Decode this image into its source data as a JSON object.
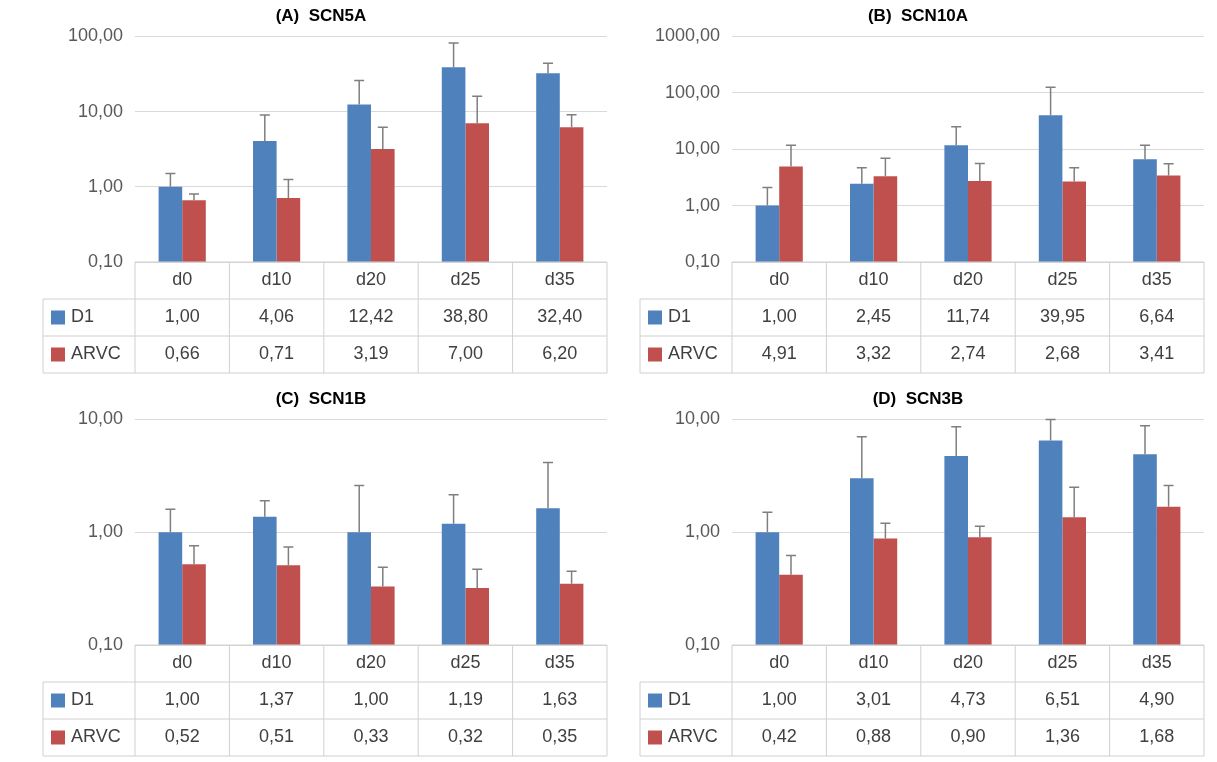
{
  "chart_data": [
    {
      "type": "bar",
      "title": "(A)  SCN5A",
      "categories": [
        "d0",
        "d10",
        "d20",
        "d25",
        "d35"
      ],
      "log": true,
      "grid": "y",
      "legend": "bottom",
      "ylim": [
        0.1,
        100
      ],
      "yticks": [
        {
          "value": 0.1,
          "label": "0,10"
        },
        {
          "value": 1,
          "label": "1,00"
        },
        {
          "value": 10,
          "label": "10,00"
        },
        {
          "value": 100,
          "label": "100,00"
        }
      ],
      "series": [
        {
          "name": "D1",
          "color": "#4f81bd",
          "values": [
            1.0,
            4.06,
            12.42,
            38.8,
            32.4
          ],
          "value_labels": [
            "1,00",
            "4,06",
            "12,42",
            "38,80",
            "32,40"
          ],
          "errors": [
            [
              1.0,
              1.5
            ],
            [
              4.06,
              9
            ],
            [
              12.42,
              26
            ],
            [
              38.8,
              82
            ],
            [
              32.4,
              44
            ]
          ]
        },
        {
          "name": "ARVC",
          "color": "#c0504d",
          "values": [
            0.66,
            0.71,
            3.19,
            7.0,
            6.2
          ],
          "value_labels": [
            "0,66",
            "0,71",
            "3,19",
            "7,00",
            "6,20"
          ],
          "errors": [
            [
              0.66,
              0.8
            ],
            [
              0.71,
              1.25
            ],
            [
              3.19,
              6.2
            ],
            [
              7.0,
              16
            ],
            [
              6.2,
              9.1
            ]
          ]
        }
      ]
    },
    {
      "type": "bar",
      "title": "(B)  SCN10A",
      "categories": [
        "d0",
        "d10",
        "d20",
        "d25",
        "d35"
      ],
      "log": true,
      "grid": "y",
      "legend": "bottom",
      "ylim": [
        0.1,
        1000
      ],
      "yticks": [
        {
          "value": 0.1,
          "label": "0,10"
        },
        {
          "value": 1,
          "label": "1,00"
        },
        {
          "value": 10,
          "label": "10,00"
        },
        {
          "value": 100,
          "label": "100,00"
        },
        {
          "value": 1000,
          "label": "1000,00"
        }
      ],
      "series": [
        {
          "name": "D1",
          "color": "#4f81bd",
          "values": [
            1.0,
            2.45,
            11.74,
            39.95,
            6.64
          ],
          "value_labels": [
            "1,00",
            "2,45",
            "11,74",
            "39,95",
            "6,64"
          ],
          "errors": [
            [
              1.0,
              2.1
            ],
            [
              2.45,
              4.7
            ],
            [
              11.74,
              25
            ],
            [
              39.95,
              125
            ],
            [
              6.64,
              11.7
            ]
          ]
        },
        {
          "name": "ARVC",
          "color": "#c0504d",
          "values": [
            4.91,
            3.32,
            2.74,
            2.68,
            3.41
          ],
          "value_labels": [
            "4,91",
            "3,32",
            "2,74",
            "2,68",
            "3,41"
          ],
          "errors": [
            [
              4.91,
              11.8
            ],
            [
              3.32,
              6.9
            ],
            [
              2.74,
              5.6
            ],
            [
              2.68,
              4.7
            ],
            [
              3.41,
              5.5
            ]
          ]
        }
      ]
    },
    {
      "type": "bar",
      "title": "(C)  SCN1B",
      "categories": [
        "d0",
        "d10",
        "d20",
        "d25",
        "d35"
      ],
      "log": true,
      "grid": "y",
      "legend": "bottom",
      "ylim": [
        0.1,
        10
      ],
      "yticks": [
        {
          "value": 0.1,
          "label": "0,10"
        },
        {
          "value": 1,
          "label": "1,00"
        },
        {
          "value": 10,
          "label": "10,00"
        }
      ],
      "series": [
        {
          "name": "D1",
          "color": "#4f81bd",
          "values": [
            1.0,
            1.37,
            1.0,
            1.19,
            1.63
          ],
          "value_labels": [
            "1,00",
            "1,37",
            "1,00",
            "1,19",
            "1,63"
          ],
          "errors": [
            [
              1.0,
              1.6
            ],
            [
              1.37,
              1.9
            ],
            [
              1.0,
              2.6
            ],
            [
              1.19,
              2.15
            ],
            [
              1.63,
              4.15
            ]
          ]
        },
        {
          "name": "ARVC",
          "color": "#c0504d",
          "values": [
            0.52,
            0.51,
            0.33,
            0.32,
            0.35
          ],
          "value_labels": [
            "0,52",
            "0,51",
            "0,33",
            "0,32",
            "0,35"
          ],
          "errors": [
            [
              0.52,
              0.76
            ],
            [
              0.51,
              0.74
            ],
            [
              0.33,
              0.49
            ],
            [
              0.32,
              0.47
            ],
            [
              0.35,
              0.45
            ]
          ]
        }
      ]
    },
    {
      "type": "bar",
      "title": "(D)  SCN3B",
      "categories": [
        "d0",
        "d10",
        "d20",
        "d25",
        "d35"
      ],
      "log": true,
      "grid": "y",
      "legend": "bottom",
      "ylim": [
        0.1,
        10
      ],
      "yticks": [
        {
          "value": 0.1,
          "label": "0,10"
        },
        {
          "value": 1,
          "label": "1,00"
        },
        {
          "value": 10,
          "label": "10,00"
        }
      ],
      "series": [
        {
          "name": "D1",
          "color": "#4f81bd",
          "values": [
            1.0,
            3.01,
            4.73,
            6.51,
            4.9
          ],
          "value_labels": [
            "1,00",
            "3,01",
            "4,73",
            "6,51",
            "4,90"
          ],
          "errors": [
            [
              1.0,
              1.5
            ],
            [
              3.01,
              7.0
            ],
            [
              4.73,
              8.6
            ],
            [
              6.51,
              10.0
            ],
            [
              4.9,
              8.8
            ]
          ]
        },
        {
          "name": "ARVC",
          "color": "#c0504d",
          "values": [
            0.42,
            0.88,
            0.9,
            1.36,
            1.68
          ],
          "value_labels": [
            "0,42",
            "0,88",
            "0,90",
            "1,36",
            "1,68"
          ],
          "errors": [
            [
              0.42,
              0.62
            ],
            [
              0.88,
              1.2
            ],
            [
              0.9,
              1.13
            ],
            [
              1.36,
              2.5
            ],
            [
              1.68,
              2.6
            ]
          ]
        }
      ]
    }
  ]
}
